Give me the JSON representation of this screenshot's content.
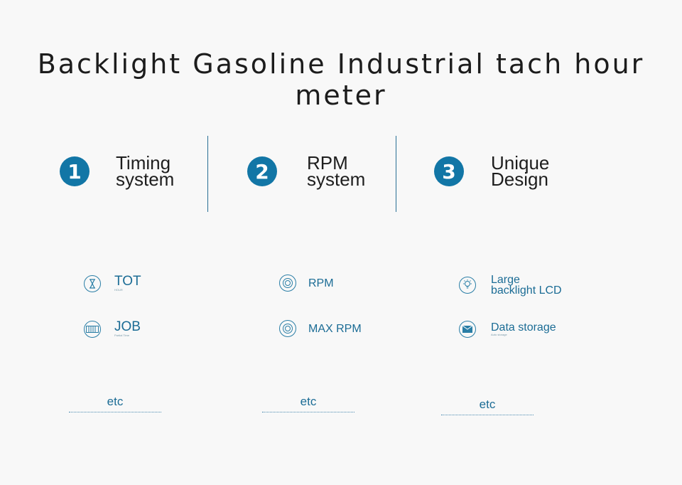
{
  "title": "Backlight Gasoline Industrial tach hour meter",
  "features": [
    {
      "number": "1",
      "line1": "Timing",
      "line2": "system"
    },
    {
      "number": "2",
      "line1": "RPM",
      "line2": "system"
    },
    {
      "number": "3",
      "line1": "Unique",
      "line2": "Design"
    }
  ],
  "items": {
    "tot": {
      "label": "TOT",
      "sub": "HOUR",
      "icon": "hourglass-icon"
    },
    "job": {
      "label": "JOB",
      "sub": "Partial Time",
      "icon": "counter-icon"
    },
    "rpm": {
      "label": "RPM",
      "icon": "gauge-icon"
    },
    "max_rpm": {
      "label": "MAX  RPM",
      "icon": "gauge-icon"
    },
    "lcd": {
      "line1": "Large",
      "line2": "backlight LCD",
      "icon": "lightbulb-icon"
    },
    "storage": {
      "label": "Data storage",
      "sub": "Auto  storage",
      "icon": "envelope-icon"
    }
  },
  "etc": [
    "etc",
    "etc",
    "etc"
  ],
  "colors": {
    "accent": "#1276a6",
    "text_blue": "#1b6c95",
    "background": "#f8f8f8"
  }
}
